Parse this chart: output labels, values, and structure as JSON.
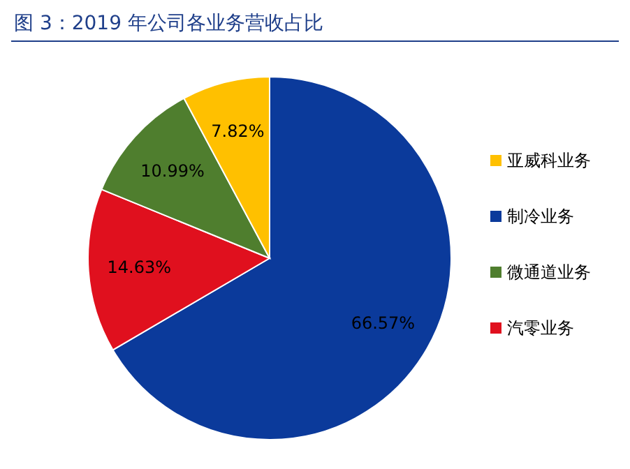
{
  "chart_data": {
    "type": "pie",
    "title": "图 3：2019 年公司各业务营收占比",
    "categories": [
      "制冷业务",
      "汽零业务",
      "微通道业务",
      "亚威科业务"
    ],
    "values": [
      66.57,
      14.63,
      10.99,
      7.82
    ],
    "colors": [
      "#0b3a9b",
      "#e0101e",
      "#4f7e2e",
      "#ffc000"
    ],
    "value_labels": [
      "66.57%",
      "14.63%",
      "10.99%",
      "7.82%"
    ],
    "legend": "right"
  }
}
